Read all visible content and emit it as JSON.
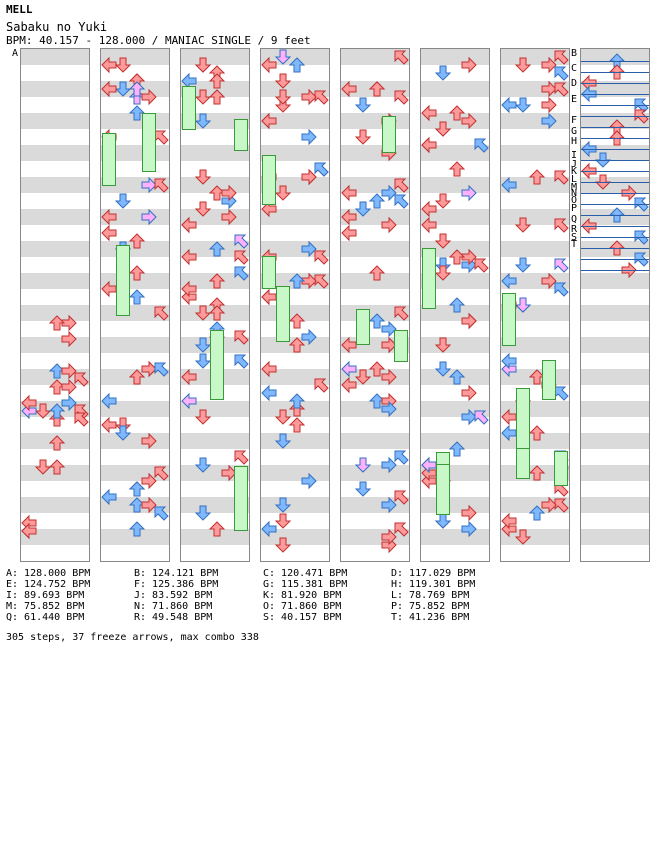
{
  "header": {
    "artist": "MELL",
    "title": "Sabaku no Yuki",
    "bpm_line": "BPM: 40.157 - 128.000 / MANIAC SINGLE / 9 feet"
  },
  "section_labels_first": [
    "A"
  ],
  "section_labels_last": [
    "B",
    "C",
    "D",
    "E",
    "F",
    "G",
    "H",
    "I",
    "J",
    "K",
    "L",
    "M",
    "N",
    "O",
    "P",
    "Q",
    "R",
    "S",
    "T"
  ],
  "bpms": [
    [
      "A: 128.000 BPM",
      "B: 124.121 BPM",
      "C: 120.471 BPM",
      "D: 117.029 BPM"
    ],
    [
      "E: 124.752 BPM",
      "F: 125.386 BPM",
      "G: 115.381 BPM",
      "H: 119.301 BPM"
    ],
    [
      "I: 89.693 BPM",
      "J: 83.592 BPM",
      "K: 81.920 BPM",
      "L: 78.769 BPM"
    ],
    [
      "M: 75.852 BPM",
      "N: 71.860 BPM",
      "O: 71.860 BPM",
      "P: 75.852 BPM"
    ],
    [
      "Q: 61.440 BPM",
      "R: 49.548 BPM",
      "S: 40.157 BPM",
      "T: 41.236 BPM"
    ]
  ],
  "summary": "305 steps, 37 freeze arrows, max combo 338",
  "colors": {
    "red": "#ff9a9a",
    "blue": "#7fb8ff",
    "pink": "#ffb0ff",
    "green": "#c8f7c8",
    "stroke_red": "#c03030",
    "stroke_blue": "#3070c0"
  }
}
